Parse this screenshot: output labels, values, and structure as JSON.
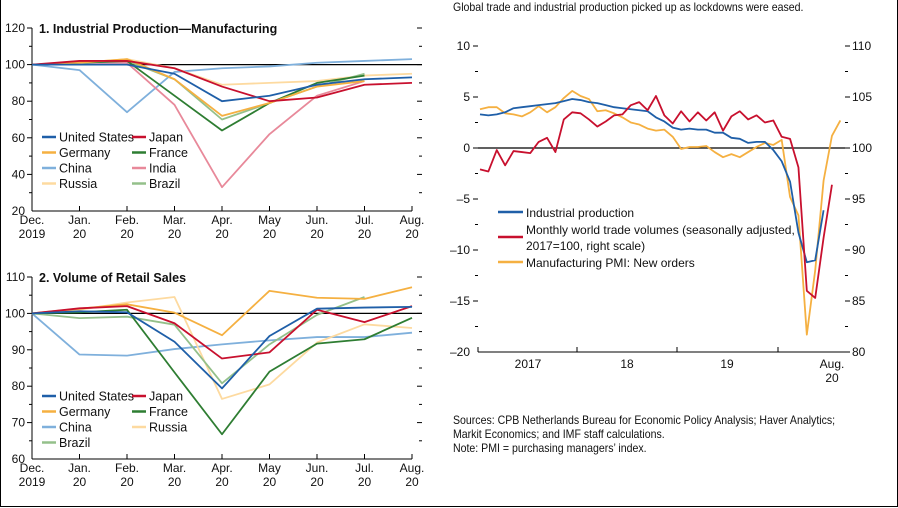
{
  "subtitle": "Global trade and industrial production picked up as lockdowns were eased.",
  "notes": {
    "sources": "Sources: CPB Netherlands Bureau for Economic Policy Analysis; Haver Analytics;",
    "sources2": "Markit Economics; and IMF staff calculations.",
    "note": "Note: PMI = purchasing managers’ index."
  },
  "colors": {
    "United States": "#1f5fa8",
    "Japan": "#c8102e",
    "Germany": "#f5b041",
    "France": "#2e7d32",
    "China": "#7fb0dc",
    "India": "#e8899a",
    "Russia": "#fddaa0",
    "Brazil": "#94c08a",
    "Industrial production": "#1f5fa8",
    "Monthly world trade volumes": "#c8102e",
    "Manufacturing PMI": "#f5b041"
  },
  "chart_data": [
    {
      "type": "line",
      "title": "1. Industrial Production—Manufacturing",
      "categories": [
        "Dec. 2019",
        "Jan. 20",
        "Feb. 20",
        "Mar. 20",
        "Apr. 20",
        "May 20",
        "Jun. 20",
        "Jul. 20",
        "Aug. 20"
      ],
      "tick_labels_top": [
        "Dec.",
        "Jan.",
        "Feb.",
        "Mar.",
        "Apr.",
        "May",
        "Jun.",
        "Jul.",
        "Aug."
      ],
      "tick_labels_bottom": [
        "2019",
        "20",
        "20",
        "20",
        "20",
        "20",
        "20",
        "20",
        "20"
      ],
      "ylim": [
        20,
        120
      ],
      "yticks": [
        20,
        40,
        60,
        80,
        100,
        120
      ],
      "reference_line": 100,
      "legend": [
        "United States",
        "Japan",
        "Germany",
        "France",
        "China",
        "India",
        "Russia",
        "Brazil"
      ],
      "series": [
        {
          "name": "China",
          "values": [
            100,
            97,
            74,
            96,
            98,
            99,
            101,
            102,
            103
          ]
        },
        {
          "name": "Russia",
          "values": [
            100,
            101,
            103,
            98,
            89,
            90,
            91,
            94,
            95
          ]
        },
        {
          "name": "India",
          "values": [
            100,
            101,
            101,
            78,
            33,
            62,
            83,
            91,
            null
          ]
        },
        {
          "name": "Brazil",
          "values": [
            100,
            101,
            102,
            92,
            70,
            79,
            88,
            95,
            null
          ]
        },
        {
          "name": "France",
          "values": [
            100,
            101,
            102,
            83,
            64,
            79,
            90,
            94,
            null
          ]
        },
        {
          "name": "Germany",
          "values": [
            100,
            101,
            103,
            92,
            72,
            79,
            88,
            91,
            null
          ]
        },
        {
          "name": "Japan",
          "values": [
            100,
            102,
            102,
            98,
            88,
            80,
            82,
            89,
            90
          ]
        },
        {
          "name": "United States",
          "values": [
            100,
            100,
            100,
            95,
            80,
            83,
            89,
            92,
            93
          ]
        }
      ]
    },
    {
      "type": "line",
      "title": "2. Volume of Retail Sales",
      "categories": [
        "Dec. 2019",
        "Jan. 20",
        "Feb. 20",
        "Mar. 20",
        "Apr. 20",
        "May 20",
        "Jun. 20",
        "Jul. 20",
        "Aug. 20"
      ],
      "tick_labels_top": [
        "Dec.",
        "Jan.",
        "Feb.",
        "Mar.",
        "Apr.",
        "May",
        "Jun.",
        "Jul.",
        "Aug."
      ],
      "tick_labels_bottom": [
        "2019",
        "20",
        "20",
        "20",
        "20",
        "20",
        "20",
        "20",
        "20"
      ],
      "ylim": [
        60,
        110
      ],
      "yticks": [
        60,
        70,
        80,
        90,
        100,
        110
      ],
      "reference_line": 100,
      "legend": [
        "United States",
        "Japan",
        "Germany",
        "France",
        "China",
        "Russia",
        "Brazil"
      ],
      "series": [
        {
          "name": "China",
          "values": [
            100,
            88.7,
            88.4,
            90.2,
            91.5,
            92.6,
            93.5,
            93.5,
            94.7
          ]
        },
        {
          "name": "Russia",
          "values": [
            100,
            101,
            103,
            104.5,
            76.5,
            80.5,
            92,
            97,
            96
          ]
        },
        {
          "name": "Brazil",
          "values": [
            100,
            98.7,
            99.1,
            96.9,
            80.8,
            91.5,
            99.6,
            104.5,
            null
          ]
        },
        {
          "name": "Germany",
          "values": [
            100,
            101.3,
            102.5,
            100.2,
            94,
            106.2,
            104.3,
            104,
            107.2
          ]
        },
        {
          "name": "France",
          "values": [
            100,
            100.3,
            101,
            83.8,
            66.8,
            84,
            91.7,
            92.9,
            98.8
          ]
        },
        {
          "name": "Japan",
          "values": [
            100,
            101.4,
            102,
            97.3,
            87.6,
            89.3,
            101,
            97.6,
            102
          ]
        },
        {
          "name": "United States",
          "values": [
            100,
            100.6,
            100.3,
            92.2,
            79.4,
            93.8,
            101.3,
            101.6,
            101.8
          ]
        }
      ]
    },
    {
      "type": "line",
      "title": "Global trade and industrial production picked up as lockdowns were eased.",
      "x_start": "Jan. 2017",
      "x_end": "Aug. 2020",
      "frequency": "monthly",
      "xtick_labels": [
        "2017",
        "18",
        "19",
        "Aug."
      ],
      "xtick_label_extra": "20",
      "ylim_left": [
        -20,
        10
      ],
      "yticks_left": [
        -20,
        -15,
        -10,
        -5,
        0,
        5,
        10
      ],
      "ylim_right": [
        80,
        110
      ],
      "yticks_right": [
        80,
        85,
        90,
        95,
        100,
        105,
        110
      ],
      "reference_line": 0,
      "legend": [
        {
          "name": "Industrial production",
          "label": "Industrial production"
        },
        {
          "name": "Monthly world trade volumes",
          "label": "Monthly world trade volumes (seasonally adjusted,",
          "label2": "2017=100, right scale)"
        },
        {
          "name": "Manufacturing PMI",
          "label": "Manufacturing PMI: New orders"
        }
      ],
      "series": [
        {
          "name": "Manufacturing PMI",
          "axis": "left",
          "values": [
            3.8,
            4.0,
            4.0,
            3.4,
            3.3,
            3.1,
            3.5,
            4.1,
            3.5,
            4.0,
            4.9,
            5.6,
            5.1,
            4.8,
            3.6,
            3.7,
            3.4,
            3.0,
            2.5,
            2.3,
            1.9,
            1.7,
            1.8,
            1.1,
            -0.1,
            0.1,
            0.1,
            0.2,
            -0.4,
            -0.9,
            -0.6,
            -0.9,
            -0.4,
            0.1,
            0.5,
            0.3,
            0.8,
            -4.8,
            -6.6,
            -18.3,
            -12.0,
            -3.2,
            1.2,
            2.7
          ]
        },
        {
          "name": "Industrial production",
          "axis": "left",
          "values": [
            3.3,
            3.2,
            3.3,
            3.5,
            3.9,
            4.0,
            4.1,
            4.2,
            4.3,
            4.4,
            4.6,
            4.8,
            4.7,
            4.5,
            4.4,
            4.2,
            4.0,
            3.9,
            3.8,
            3.7,
            3.6,
            3.0,
            2.6,
            2.0,
            1.8,
            1.9,
            1.8,
            1.8,
            1.5,
            1.5,
            1.0,
            0.9,
            0.5,
            0.6,
            0.6,
            -0.2,
            -1.3,
            -3.3,
            -8.3,
            -11.2,
            -11.0,
            -6.1
          ]
        },
        {
          "name": "Monthly world trade volumes",
          "axis": "right",
          "values": [
            97.9,
            97.7,
            99.8,
            98.3,
            99.7,
            99.6,
            99.5,
            100.6,
            101.0,
            99.6,
            102.8,
            103.5,
            103.4,
            102.8,
            102.1,
            102.6,
            103.2,
            103.3,
            104.2,
            104.5,
            103.7,
            105.1,
            103.2,
            102.4,
            103.6,
            102.6,
            103.5,
            102.7,
            103.5,
            101.7,
            103.1,
            103.6,
            102.8,
            103.2,
            102.5,
            102.7,
            101.1,
            100.9,
            98.1,
            86.0,
            85.3,
            91.2,
            96.4
          ]
        }
      ]
    }
  ]
}
